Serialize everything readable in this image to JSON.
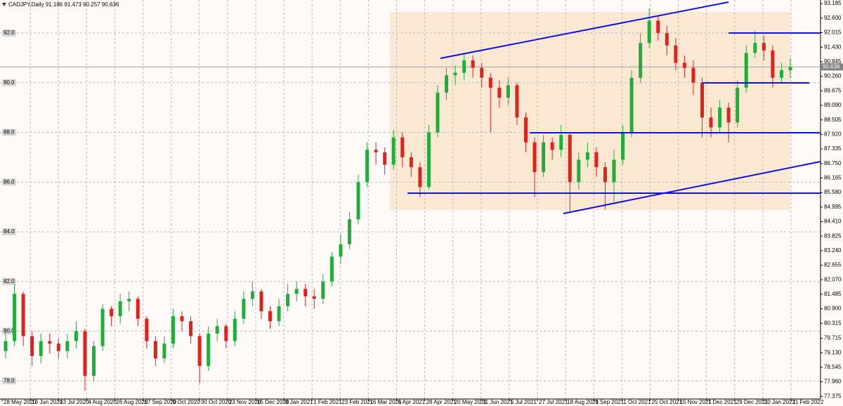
{
  "chart_data": {
    "type": "candlestick",
    "title": "CADJPY,Daily  91.186 91.473 90.257 90.636",
    "up_color": "#1fae3c",
    "down_color": "#e0221c",
    "ylim": [
      77.27,
      93.33
    ],
    "yticks": [
      93.185,
      {
        "value": 92.6,
        "label": "92.600"
      },
      92.015,
      {
        "value": 91.43,
        "label": "91.430"
      },
      90.845,
      {
        "value": 90.26,
        "label": "90.260"
      },
      89.675,
      {
        "value": 89.09,
        "label": "89.090"
      },
      88.505,
      {
        "value": 87.92,
        "label": "87.920"
      },
      87.335,
      {
        "value": 86.75,
        "label": "86.750"
      },
      86.165,
      {
        "value": 85.58,
        "label": "85.580"
      },
      84.995,
      {
        "value": 84.41,
        "label": "84.410"
      },
      83.825,
      {
        "value": 83.24,
        "label": "83.240"
      },
      82.655,
      {
        "value": 82.07,
        "label": "82.070"
      },
      81.485,
      {
        "value": 80.9,
        "label": "80.900"
      },
      80.315,
      79.715,
      {
        "value": 79.13,
        "label": "79.130"
      },
      78.545,
      {
        "value": 77.96,
        "label": "77.960"
      },
      77.375
    ],
    "levels": [
      {
        "value": 92,
        "label": "92.0"
      },
      {
        "value": 90,
        "label": "90.0"
      },
      {
        "value": 88,
        "label": "88.0"
      },
      {
        "value": 86,
        "label": "86.0"
      },
      {
        "value": 84,
        "label": "84.0"
      },
      {
        "value": 82,
        "label": "82.0"
      },
      {
        "value": 80,
        "label": "80.0"
      },
      {
        "value": 78,
        "label": "78.0"
      }
    ],
    "current_price": 90.636,
    "date_labels": [
      "28 May 2020",
      "19 Jun 2020",
      "13 Jul 2020",
      "4 Aug 2020",
      "26 Aug 2020",
      "17 Sep 2020",
      "9 Oct 2020",
      "30 Oct 2020",
      "23 Nov 2020",
      "15 Dec 2020",
      "8 Jan 2021",
      "1 Feb 2021",
      "23 Feb 2021",
      "16 Mar 2021",
      "6 Apr 2021",
      "28 Apr 2021",
      "20 May 2021",
      "11 Jun 2021",
      "5 Jul 2021",
      "27 Jul 2021",
      "18 Aug 2021",
      "9 Sep 2021",
      "1 Oct 2021",
      "25 Oct 2021",
      "15 Nov 2021",
      "7 Dec 2021",
      "29 Dec 2021",
      "20 Jan 2022",
      "11 Feb 2022"
    ],
    "open": [
      79.2,
      79.6,
      81.5,
      79.8,
      79.0,
      79.6,
      79.5,
      79.2,
      79.6,
      80.0,
      78.2,
      79.4,
      80.9,
      80.6,
      81.2,
      81.3,
      80.5,
      79.6,
      78.9,
      79.5,
      80.6,
      80.4,
      79.8,
      78.6,
      79.9,
      80.2,
      79.6,
      80.5,
      81.3,
      81.6,
      80.8,
      80.4,
      81.0,
      81.5,
      81.7,
      81.4,
      81.3,
      82.0,
      83.0,
      83.5,
      84.5,
      86.0,
      87.3,
      87.2,
      86.7,
      87.8,
      87.0,
      86.6,
      85.8,
      88.0,
      89.6,
      90.3,
      90.4,
      90.9,
      90.6,
      90.2,
      89.8,
      89.4,
      89.9,
      88.6,
      87.6,
      86.4,
      87.6,
      87.3,
      87.9,
      86.0,
      86.9,
      87.2,
      86.6,
      86.0,
      86.9,
      88.0,
      90.2,
      91.6,
      92.5,
      92.0,
      91.5,
      90.8,
      90.6,
      90.0,
      88.6,
      88.2,
      89.0,
      88.4,
      89.8,
      91.2,
      91.6,
      91.3,
      90.2,
      90.5
    ],
    "high": [
      80.0,
      81.9,
      81.6,
      80.0,
      79.9,
      79.9,
      79.7,
      79.9,
      80.4,
      80.1,
      79.6,
      81.1,
      81.0,
      81.5,
      81.6,
      81.4,
      80.6,
      79.8,
      79.8,
      80.9,
      80.8,
      80.6,
      79.9,
      80.2,
      80.5,
      80.3,
      80.8,
      81.6,
      82.0,
      81.7,
      81.0,
      81.3,
      81.9,
      82.0,
      81.9,
      81.7,
      82.3,
      83.2,
      83.9,
      84.8,
      86.3,
      87.6,
      87.6,
      87.4,
      88.1,
      88.0,
      87.2,
      86.8,
      88.3,
      89.9,
      90.6,
      90.7,
      91.2,
      91.1,
      90.8,
      90.4,
      90.1,
      90.2,
      90.0,
      88.8,
      87.8,
      87.9,
      87.8,
      88.3,
      88.0,
      87.2,
      87.6,
      87.4,
      86.8,
      87.3,
      88.3,
      90.5,
      92.0,
      93.0,
      92.7,
      92.3,
      91.8,
      91.1,
      90.9,
      90.2,
      89.0,
      89.3,
      89.2,
      90.1,
      91.5,
      92.1,
      91.9,
      91.5,
      90.8,
      91.0
    ],
    "low": [
      78.9,
      79.4,
      79.4,
      78.6,
      78.7,
      79.1,
      78.9,
      78.9,
      79.3,
      77.6,
      78.0,
      79.2,
      80.2,
      80.3,
      80.8,
      80.2,
      79.3,
      78.6,
      78.7,
      79.3,
      80.0,
      79.5,
      77.9,
      78.4,
      79.6,
      79.3,
      79.4,
      80.3,
      81.0,
      80.5,
      80.1,
      80.2,
      80.8,
      81.2,
      81.0,
      80.9,
      81.1,
      81.8,
      82.7,
      83.3,
      84.3,
      85.8,
      86.7,
      86.3,
      86.5,
      86.6,
      86.2,
      85.4,
      85.7,
      87.8,
      89.3,
      89.9,
      90.1,
      90.2,
      89.8,
      88.0,
      89.0,
      89.1,
      88.3,
      87.2,
      85.4,
      86.2,
      86.9,
      87.0,
      84.8,
      85.7,
      86.6,
      86.2,
      84.9,
      85.2,
      86.7,
      87.8,
      90.0,
      91.4,
      91.7,
      91.1,
      90.5,
      90.2,
      89.5,
      87.8,
      87.8,
      88.0,
      87.6,
      88.2,
      89.6,
      91.0,
      90.9,
      89.8,
      90.0,
      90.2
    ],
    "close": [
      79.6,
      81.5,
      79.8,
      79.0,
      79.6,
      79.5,
      79.2,
      79.6,
      80.0,
      78.2,
      79.4,
      80.9,
      80.6,
      81.2,
      81.3,
      80.5,
      79.6,
      78.9,
      79.5,
      80.6,
      80.4,
      79.8,
      78.6,
      79.9,
      80.2,
      79.6,
      80.5,
      81.3,
      81.6,
      80.8,
      80.4,
      81.0,
      81.5,
      81.7,
      81.4,
      81.3,
      82.0,
      83.0,
      83.5,
      84.5,
      86.0,
      87.3,
      87.2,
      86.7,
      87.8,
      87.0,
      86.6,
      85.8,
      88.0,
      89.6,
      90.3,
      90.4,
      90.9,
      90.6,
      90.2,
      89.8,
      89.4,
      89.9,
      88.6,
      87.6,
      86.4,
      87.6,
      87.3,
      87.9,
      86.0,
      86.9,
      87.2,
      86.6,
      86.0,
      86.9,
      88.0,
      90.2,
      91.6,
      92.5,
      92.0,
      91.5,
      90.8,
      90.6,
      90.0,
      88.6,
      88.2,
      89.0,
      88.4,
      89.8,
      91.2,
      91.6,
      91.3,
      90.2,
      90.5,
      90.636
    ]
  }
}
